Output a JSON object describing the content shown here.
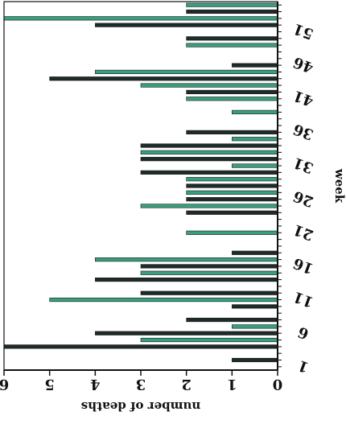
{
  "chart_data": {
    "type": "bar",
    "orientation": "rotated-180",
    "title": "",
    "xlabel": "week",
    "ylabel": "number of deaths",
    "ylim": [
      0,
      6
    ],
    "y_ticks": [
      "0",
      "1",
      "2",
      "3",
      "4",
      "5",
      "6"
    ],
    "x_tick_labels": [
      "1",
      "6",
      "11",
      "16",
      "21",
      "26",
      "31",
      "36",
      "41",
      "46",
      "51"
    ],
    "categories": [
      1,
      2,
      3,
      4,
      5,
      6,
      7,
      8,
      9,
      10,
      11,
      12,
      13,
      14,
      15,
      16,
      17,
      18,
      19,
      20,
      21,
      22,
      23,
      24,
      25,
      26,
      27,
      28,
      29,
      30,
      31,
      32,
      33,
      34,
      35,
      36,
      37,
      38,
      39,
      40,
      41,
      42,
      43,
      44,
      45,
      46,
      47,
      48,
      49,
      50,
      51,
      52,
      53,
      54,
      55
    ],
    "values": [
      0,
      1,
      0,
      6,
      3,
      4,
      1,
      2,
      0,
      1,
      5,
      3,
      0,
      4,
      3,
      3,
      4,
      1,
      0,
      0,
      2,
      0,
      0,
      2,
      3,
      2,
      2,
      2,
      2,
      3,
      1,
      3,
      3,
      3,
      1,
      2,
      0,
      0,
      1,
      0,
      2,
      2,
      3,
      5,
      4,
      1,
      0,
      0,
      2,
      2,
      0,
      4,
      6,
      2,
      2
    ],
    "bar_colors": [
      "#3a9e7e",
      "#1e2b2a"
    ],
    "grid": false,
    "legend": "none"
  }
}
